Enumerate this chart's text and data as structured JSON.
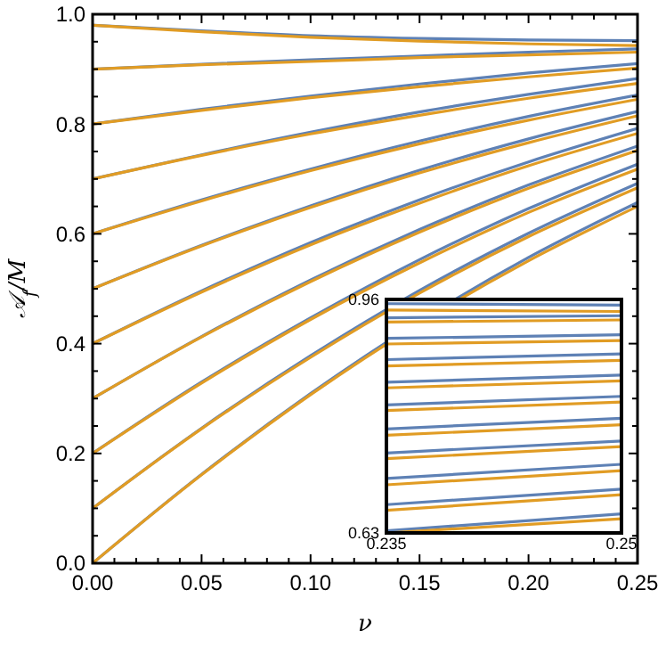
{
  "chart_data": [
    {
      "type": "line",
      "xlabel": "ν",
      "ylabel": "𝒜$_{f}$/M",
      "x": [
        0,
        0.05,
        0.1,
        0.15,
        0.2,
        0.25
      ],
      "xlim": [
        0,
        0.25
      ],
      "ylim": [
        0,
        1
      ],
      "xticks": [
        {
          "value": 0,
          "label": "0.00"
        },
        {
          "value": 0.01,
          "label": null
        },
        {
          "value": 0.02,
          "label": null
        },
        {
          "value": 0.03,
          "label": null
        },
        {
          "value": 0.04,
          "label": null
        },
        {
          "value": 0.05,
          "label": "0.05"
        },
        {
          "value": 0.06,
          "label": null
        },
        {
          "value": 0.07,
          "label": null
        },
        {
          "value": 0.08,
          "label": null
        },
        {
          "value": 0.09,
          "label": null
        },
        {
          "value": 0.1,
          "label": "0.10"
        },
        {
          "value": 0.11,
          "label": null
        },
        {
          "value": 0.12,
          "label": null
        },
        {
          "value": 0.13,
          "label": null
        },
        {
          "value": 0.14,
          "label": null
        },
        {
          "value": 0.15,
          "label": "0.15"
        },
        {
          "value": 0.16,
          "label": null
        },
        {
          "value": 0.17,
          "label": null
        },
        {
          "value": 0.18,
          "label": null
        },
        {
          "value": 0.19,
          "label": null
        },
        {
          "value": 0.2,
          "label": "0.20"
        },
        {
          "value": 0.21,
          "label": null
        },
        {
          "value": 0.22,
          "label": null
        },
        {
          "value": 0.23,
          "label": null
        },
        {
          "value": 0.24,
          "label": null
        },
        {
          "value": 0.25,
          "label": "0.25"
        }
      ],
      "yticks": [
        {
          "value": 0,
          "label": "0.0"
        },
        {
          "value": 0.05,
          "label": null
        },
        {
          "value": 0.1,
          "label": null
        },
        {
          "value": 0.15,
          "label": null
        },
        {
          "value": 0.2,
          "label": "0.2"
        },
        {
          "value": 0.25,
          "label": null
        },
        {
          "value": 0.3,
          "label": null
        },
        {
          "value": 0.35,
          "label": null
        },
        {
          "value": 0.4,
          "label": "0.4"
        },
        {
          "value": 0.45,
          "label": null
        },
        {
          "value": 0.5,
          "label": null
        },
        {
          "value": 0.55,
          "label": null
        },
        {
          "value": 0.6,
          "label": "0.6"
        },
        {
          "value": 0.65,
          "label": null
        },
        {
          "value": 0.7,
          "label": null
        },
        {
          "value": 0.75,
          "label": null
        },
        {
          "value": 0.8,
          "label": "0.8"
        },
        {
          "value": 0.85,
          "label": null
        },
        {
          "value": 0.9,
          "label": null
        },
        {
          "value": 0.95,
          "label": null
        },
        {
          "value": 1,
          "label": "1.0"
        }
      ],
      "series": [
        {
          "color": "#5e81b5",
          "values": [
            0,
            0.162,
            0.309,
            0.441,
            0.557,
            0.657
          ]
        },
        {
          "color": "#e19c24",
          "values": [
            0,
            0.161,
            0.307,
            0.437,
            0.551,
            0.65
          ]
        },
        {
          "color": "#5e81b5",
          "values": [
            0.1,
            0.246,
            0.378,
            0.497,
            0.601,
            0.692
          ]
        },
        {
          "color": "#e19c24",
          "values": [
            0.1,
            0.245,
            0.375,
            0.492,
            0.595,
            0.684
          ]
        },
        {
          "color": "#5e81b5",
          "values": [
            0.2,
            0.33,
            0.447,
            0.553,
            0.646,
            0.727
          ]
        },
        {
          "color": "#e19c24",
          "values": [
            0.2,
            0.328,
            0.444,
            0.547,
            0.639,
            0.718
          ]
        },
        {
          "color": "#5e81b5",
          "values": [
            0.3,
            0.413,
            0.516,
            0.608,
            0.689,
            0.76
          ]
        },
        {
          "color": "#e19c24",
          "values": [
            0.3,
            0.412,
            0.513,
            0.603,
            0.683,
            0.752
          ]
        },
        {
          "color": "#5e81b5",
          "values": [
            0.4,
            0.496,
            0.584,
            0.662,
            0.731,
            0.792
          ]
        },
        {
          "color": "#e19c24",
          "values": [
            0.4,
            0.494,
            0.58,
            0.656,
            0.724,
            0.783
          ]
        },
        {
          "color": "#5e81b5",
          "values": [
            0.5,
            0.579,
            0.651,
            0.716,
            0.773,
            0.823
          ]
        },
        {
          "color": "#e19c24",
          "values": [
            0.5,
            0.578,
            0.648,
            0.711,
            0.766,
            0.815
          ]
        },
        {
          "color": "#5e81b5",
          "values": [
            0.6,
            0.662,
            0.718,
            0.769,
            0.814,
            0.853
          ]
        },
        {
          "color": "#e19c24",
          "values": [
            0.6,
            0.66,
            0.715,
            0.764,
            0.807,
            0.845
          ]
        },
        {
          "color": "#5e81b5",
          "values": [
            0.7,
            0.744,
            0.785,
            0.822,
            0.854,
            0.883
          ]
        },
        {
          "color": "#e19c24",
          "values": [
            0.7,
            0.743,
            0.782,
            0.816,
            0.847,
            0.874
          ]
        },
        {
          "color": "#5e81b5",
          "values": [
            0.8,
            0.827,
            0.851,
            0.873,
            0.893,
            0.91
          ]
        },
        {
          "color": "#e19c24",
          "values": [
            0.8,
            0.825,
            0.848,
            0.868,
            0.886,
            0.902
          ]
        },
        {
          "color": "#5e81b5",
          "values": [
            0.9,
            0.909,
            0.917,
            0.924,
            0.931,
            0.937
          ]
        },
        {
          "color": "#e19c24",
          "values": [
            0.9,
            0.908,
            0.914,
            0.921,
            0.926,
            0.931
          ]
        },
        {
          "color": "#5e81b5",
          "values": [
            0.98,
            0.97,
            0.961,
            0.956,
            0.953,
            0.952
          ]
        },
        {
          "color": "#e19c24",
          "values": [
            0.98,
            0.968,
            0.958,
            0.951,
            0.946,
            0.943
          ]
        }
      ]
    },
    {
      "type": "line",
      "x": [
        0.235,
        0.25
      ],
      "xlim": [
        0.235,
        0.25
      ],
      "ylim": [
        0.63,
        0.96
      ],
      "xticks": [
        0.235,
        0.25
      ],
      "yticks": [
        0.63,
        0.96
      ],
      "series": [
        {
          "color": "#5e81b5",
          "values": [
            0.633,
            0.657
          ]
        },
        {
          "color": "#e19c24",
          "values": [
            0.63,
            0.65
          ]
        },
        {
          "color": "#5e81b5",
          "values": [
            0.67,
            0.692
          ]
        },
        {
          "color": "#e19c24",
          "values": [
            0.662,
            0.684
          ]
        },
        {
          "color": "#5e81b5",
          "values": [
            0.707,
            0.727
          ]
        },
        {
          "color": "#e19c24",
          "values": [
            0.698,
            0.718
          ]
        },
        {
          "color": "#5e81b5",
          "values": [
            0.743,
            0.76
          ]
        },
        {
          "color": "#e19c24",
          "values": [
            0.735,
            0.752
          ]
        },
        {
          "color": "#5e81b5",
          "values": [
            0.777,
            0.792
          ]
        },
        {
          "color": "#e19c24",
          "values": [
            0.768,
            0.783
          ]
        },
        {
          "color": "#5e81b5",
          "values": [
            0.811,
            0.823
          ]
        },
        {
          "color": "#e19c24",
          "values": [
            0.803,
            0.815
          ]
        },
        {
          "color": "#5e81b5",
          "values": [
            0.843,
            0.853
          ]
        },
        {
          "color": "#e19c24",
          "values": [
            0.835,
            0.845
          ]
        },
        {
          "color": "#5e81b5",
          "values": [
            0.875,
            0.883
          ]
        },
        {
          "color": "#e19c24",
          "values": [
            0.866,
            0.874
          ]
        },
        {
          "color": "#5e81b5",
          "values": [
            0.905,
            0.91
          ]
        },
        {
          "color": "#e19c24",
          "values": [
            0.897,
            0.902
          ]
        },
        {
          "color": "#5e81b5",
          "values": [
            0.934,
            0.937
          ]
        },
        {
          "color": "#e19c24",
          "values": [
            0.928,
            0.931
          ]
        },
        {
          "color": "#5e81b5",
          "values": [
            0.954,
            0.952
          ]
        },
        {
          "color": "#e19c24",
          "values": [
            0.945,
            0.943
          ]
        }
      ]
    }
  ]
}
